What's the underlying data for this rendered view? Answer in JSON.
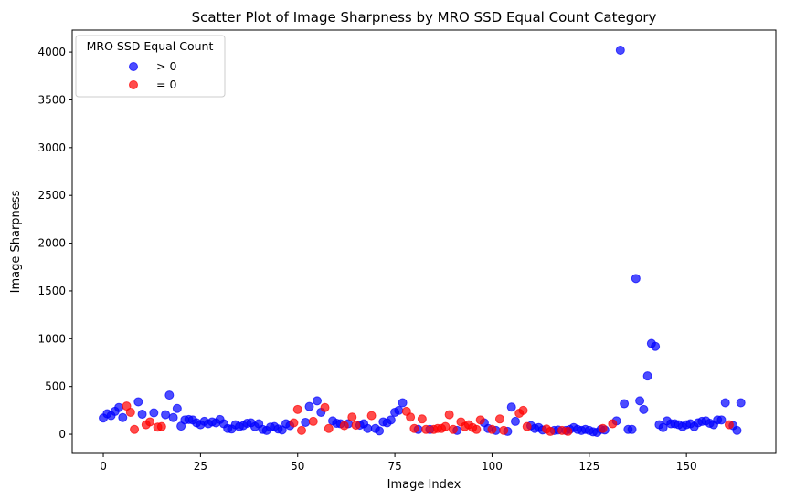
{
  "chart_data": {
    "type": "scatter",
    "title": "Scatter Plot of Image Sharpness by MRO SSD Equal Count Category",
    "xlabel": "Image Index",
    "ylabel": "Image Sharpness",
    "xlim": [
      -8,
      173
    ],
    "ylim": [
      -200,
      4230
    ],
    "x_ticks": [
      0,
      25,
      50,
      75,
      100,
      125,
      150
    ],
    "y_ticks": [
      0,
      500,
      1000,
      1500,
      2000,
      2500,
      3000,
      3500,
      4000
    ],
    "grid": false,
    "legend": {
      "title": "MRO SSD Equal Count",
      "placement": "top-left",
      "entries": [
        "> 0",
        "= 0"
      ]
    },
    "series": [
      {
        "name": "> 0",
        "color": "#0000ff",
        "points": [
          [
            0,
            170
          ],
          [
            1,
            215
          ],
          [
            2,
            195
          ],
          [
            3,
            240
          ],
          [
            4,
            280
          ],
          [
            5,
            175
          ],
          [
            9,
            340
          ],
          [
            10,
            210
          ],
          [
            13,
            225
          ],
          [
            16,
            205
          ],
          [
            17,
            410
          ],
          [
            18,
            175
          ],
          [
            19,
            270
          ],
          [
            20,
            85
          ],
          [
            21,
            150
          ],
          [
            22,
            155
          ],
          [
            23,
            150
          ],
          [
            24,
            120
          ],
          [
            25,
            100
          ],
          [
            26,
            135
          ],
          [
            27,
            110
          ],
          [
            28,
            130
          ],
          [
            29,
            120
          ],
          [
            30,
            155
          ],
          [
            31,
            110
          ],
          [
            32,
            60
          ],
          [
            33,
            55
          ],
          [
            34,
            100
          ],
          [
            35,
            80
          ],
          [
            36,
            90
          ],
          [
            37,
            115
          ],
          [
            38,
            120
          ],
          [
            39,
            80
          ],
          [
            40,
            110
          ],
          [
            41,
            50
          ],
          [
            42,
            40
          ],
          [
            43,
            75
          ],
          [
            44,
            80
          ],
          [
            45,
            55
          ],
          [
            46,
            45
          ],
          [
            47,
            110
          ],
          [
            48,
            90
          ],
          [
            52,
            125
          ],
          [
            53,
            290
          ],
          [
            55,
            350
          ],
          [
            56,
            230
          ],
          [
            59,
            140
          ],
          [
            60,
            115
          ],
          [
            61,
            110
          ],
          [
            63,
            110
          ],
          [
            66,
            95
          ],
          [
            67,
            110
          ],
          [
            68,
            60
          ],
          [
            70,
            60
          ],
          [
            71,
            35
          ],
          [
            72,
            130
          ],
          [
            73,
            120
          ],
          [
            74,
            150
          ],
          [
            75,
            230
          ],
          [
            76,
            250
          ],
          [
            77,
            330
          ],
          [
            81,
            50
          ],
          [
            84,
            50
          ],
          [
            91,
            40
          ],
          [
            98,
            120
          ],
          [
            99,
            60
          ],
          [
            101,
            40
          ],
          [
            104,
            30
          ],
          [
            105,
            285
          ],
          [
            106,
            135
          ],
          [
            110,
            90
          ],
          [
            111,
            60
          ],
          [
            112,
            70
          ],
          [
            113,
            45
          ],
          [
            116,
            40
          ],
          [
            117,
            45
          ],
          [
            119,
            40
          ],
          [
            120,
            50
          ],
          [
            121,
            70
          ],
          [
            122,
            50
          ],
          [
            123,
            40
          ],
          [
            124,
            50
          ],
          [
            125,
            40
          ],
          [
            126,
            25
          ],
          [
            127,
            20
          ],
          [
            128,
            50
          ],
          [
            129,
            45
          ],
          [
            132,
            140
          ],
          [
            133,
            4020
          ],
          [
            134,
            320
          ],
          [
            135,
            50
          ],
          [
            136,
            50
          ],
          [
            137,
            1630
          ],
          [
            138,
            350
          ],
          [
            139,
            260
          ],
          [
            140,
            610
          ],
          [
            141,
            950
          ],
          [
            142,
            920
          ],
          [
            143,
            100
          ],
          [
            144,
            70
          ],
          [
            145,
            140
          ],
          [
            146,
            110
          ],
          [
            147,
            110
          ],
          [
            148,
            100
          ],
          [
            149,
            80
          ],
          [
            150,
            100
          ],
          [
            151,
            110
          ],
          [
            152,
            80
          ],
          [
            153,
            120
          ],
          [
            154,
            135
          ],
          [
            155,
            140
          ],
          [
            156,
            115
          ],
          [
            157,
            100
          ],
          [
            158,
            150
          ],
          [
            159,
            150
          ],
          [
            160,
            330
          ],
          [
            162,
            90
          ],
          [
            163,
            40
          ],
          [
            164,
            330
          ]
        ]
      },
      {
        "name": "= 0",
        "color": "#ff0000",
        "points": [
          [
            6,
            295
          ],
          [
            7,
            230
          ],
          [
            8,
            50
          ],
          [
            11,
            100
          ],
          [
            12,
            130
          ],
          [
            14,
            75
          ],
          [
            15,
            80
          ],
          [
            49,
            120
          ],
          [
            50,
            260
          ],
          [
            51,
            40
          ],
          [
            54,
            135
          ],
          [
            57,
            280
          ],
          [
            58,
            60
          ],
          [
            62,
            90
          ],
          [
            64,
            180
          ],
          [
            65,
            95
          ],
          [
            69,
            195
          ],
          [
            78,
            240
          ],
          [
            79,
            180
          ],
          [
            80,
            60
          ],
          [
            82,
            160
          ],
          [
            83,
            50
          ],
          [
            85,
            50
          ],
          [
            86,
            60
          ],
          [
            87,
            60
          ],
          [
            88,
            80
          ],
          [
            89,
            205
          ],
          [
            90,
            50
          ],
          [
            92,
            130
          ],
          [
            93,
            80
          ],
          [
            94,
            100
          ],
          [
            95,
            70
          ],
          [
            96,
            50
          ],
          [
            97,
            150
          ],
          [
            100,
            50
          ],
          [
            102,
            160
          ],
          [
            103,
            40
          ],
          [
            107,
            220
          ],
          [
            108,
            250
          ],
          [
            109,
            80
          ],
          [
            114,
            55
          ],
          [
            115,
            30
          ],
          [
            118,
            40
          ],
          [
            119.5,
            30
          ],
          [
            128.5,
            60
          ],
          [
            131,
            110
          ],
          [
            161,
            100
          ]
        ]
      }
    ]
  }
}
